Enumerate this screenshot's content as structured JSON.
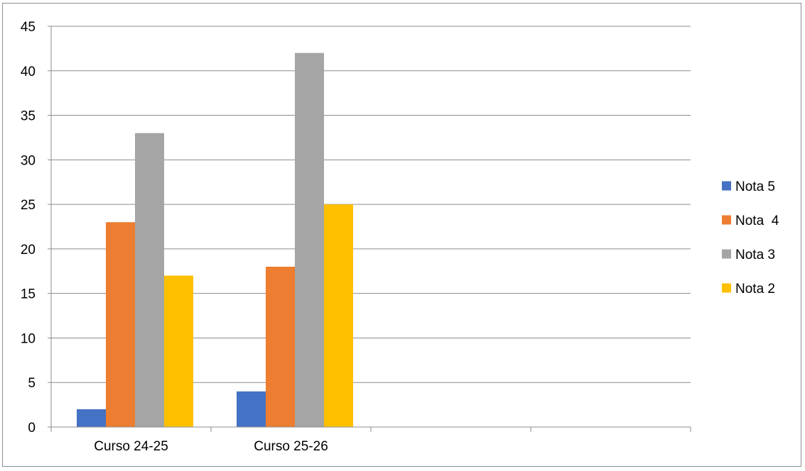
{
  "chart_data": {
    "type": "bar",
    "title": "",
    "xlabel": "",
    "ylabel": "",
    "categories": [
      "Curso 24-25",
      "Curso 25-26",
      "",
      ""
    ],
    "series": [
      {
        "name": "Nota 5",
        "values": [
          2,
          4,
          null,
          null
        ],
        "color": "#4472C4"
      },
      {
        "name": "Nota  4",
        "values": [
          23,
          18,
          null,
          null
        ],
        "color": "#ED7D31"
      },
      {
        "name": "Nota 3",
        "values": [
          33,
          42,
          null,
          null
        ],
        "color": "#A5A5A5"
      },
      {
        "name": "Nota 2",
        "values": [
          17,
          25,
          null,
          null
        ],
        "color": "#FFC000"
      }
    ],
    "ylim": [
      0,
      45
    ],
    "yticks": [
      0,
      5,
      10,
      15,
      20,
      25,
      30,
      35,
      40,
      45
    ],
    "grid": true,
    "legend": "right"
  }
}
